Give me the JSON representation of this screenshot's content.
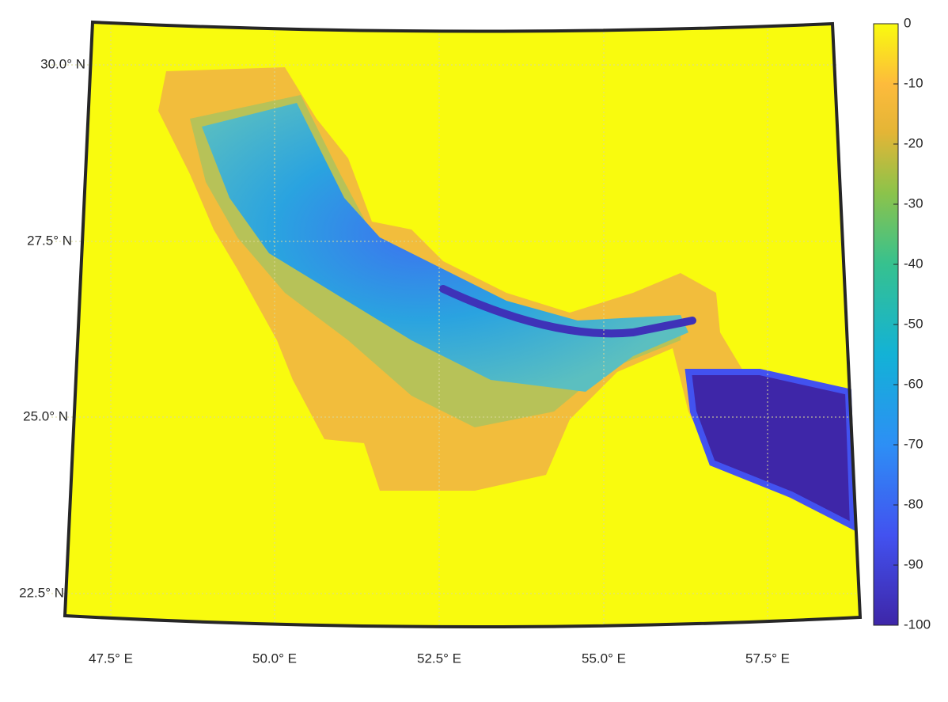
{
  "map": {
    "lat_labels": [
      "30.0° N",
      "27.5° N",
      "25.0° N",
      "22.5° N"
    ],
    "lon_labels": [
      "47.5° E",
      "50.0° E",
      "52.5° E",
      "55.0° E",
      "57.5° E"
    ],
    "colorbar": {
      "lim": [
        -100,
        0
      ],
      "ticks": [
        0,
        -10,
        -20,
        -30,
        -40,
        -50,
        -60,
        -70,
        -80,
        -90,
        -100
      ]
    }
  }
}
